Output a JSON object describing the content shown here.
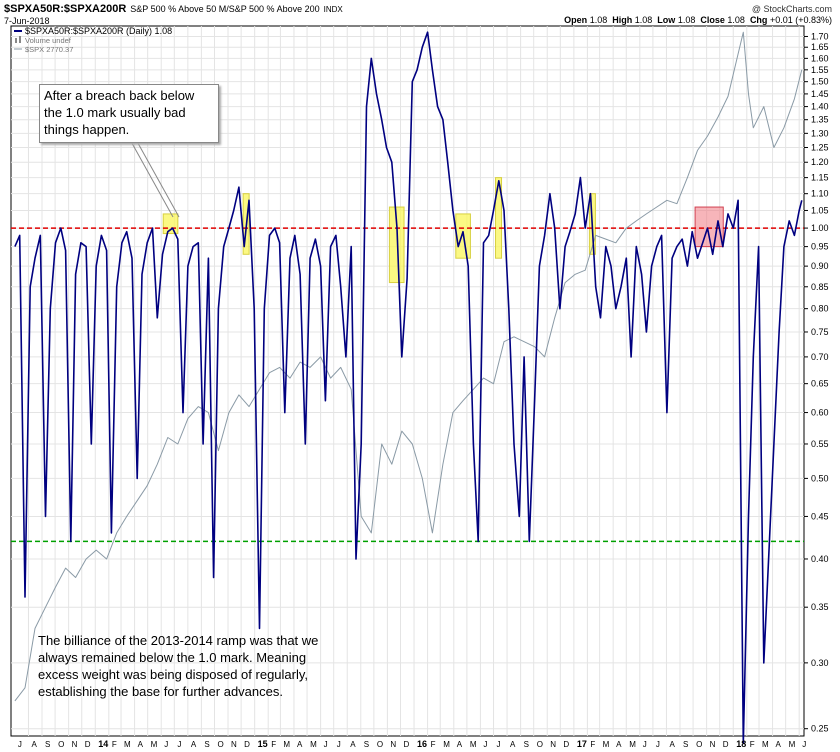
{
  "header": {
    "symbol": "$SPXA50R:$SPXA200R",
    "description": "S&P 500 % Above 50 M/S&P 500 % Above 200",
    "tag": "INDX",
    "date": "7-Jun-2018",
    "credit": "@ StockCharts.com",
    "ohlc": {
      "open_label": "Open",
      "open": "1.08",
      "high_label": "High",
      "high": "1.08",
      "low_label": "Low",
      "low": "1.08",
      "close_label": "Close",
      "close": "1.08",
      "chg_label": "Chg",
      "chg": "+0.01 (+0.83%)"
    }
  },
  "annotations": {
    "top": "After a breach back below the 1.0 mark usually bad things happen.",
    "bottom": "The billiance of the 2013-2014 ramp was that we always remained below the 1.0 mark. Meaning excess weight was being disposed of regularly, establishing the base for further advances."
  },
  "chart_data": {
    "type": "line",
    "y_scale": "log",
    "ylim": [
      0.245,
      1.75
    ],
    "y_ticks": [
      "1.70",
      "1.65",
      "1.60",
      "1.55",
      "1.50",
      "1.45",
      "1.40",
      "1.35",
      "1.30",
      "1.25",
      "1.20",
      "1.15",
      "1.10",
      "1.05",
      "1.00",
      "0.95",
      "0.90",
      "0.85",
      "0.80",
      "0.75",
      "0.70",
      "0.65",
      "0.60",
      "0.55",
      "0.50",
      "0.45",
      "0.40",
      "0.35",
      "0.30",
      "0.25"
    ],
    "x_ticks": [
      "J",
      "A",
      "S",
      "O",
      "N",
      "D",
      "14",
      "F",
      "M",
      "A",
      "M",
      "J",
      "J",
      "A",
      "S",
      "O",
      "N",
      "D",
      "15",
      "F",
      "M",
      "A",
      "M",
      "J",
      "J",
      "A",
      "S",
      "O",
      "N",
      "D",
      "16",
      "F",
      "M",
      "A",
      "M",
      "J",
      "J",
      "A",
      "S",
      "O",
      "N",
      "D",
      "17",
      "F",
      "M",
      "A",
      "M",
      "J",
      "J",
      "A",
      "S",
      "O",
      "N",
      "D",
      "18",
      "F",
      "M",
      "A",
      "M",
      "J"
    ],
    "year_labels": [
      "14",
      "15",
      "16",
      "17",
      "18"
    ],
    "legend": [
      {
        "name": "$SPXA50R:$SPXA200R (Daily) 1.08",
        "color": "#000080"
      },
      {
        "name": "Volume undef",
        "color": "#888888"
      },
      {
        "name": "$SPX 2770.37",
        "color": "#8a9aa6"
      }
    ],
    "reference_lines": [
      {
        "value": 1.0,
        "color": "#e00000",
        "style": "dashed"
      },
      {
        "value": 0.42,
        "color": "#00a000",
        "style": "dashed"
      }
    ],
    "highlights": [
      {
        "from": "Jun 2014",
        "to": "Jul 2014",
        "low": 0.985,
        "high": 1.04,
        "color": "yellow"
      },
      {
        "from": "Dec 2014",
        "to": "Dec 2014",
        "low": 0.93,
        "high": 1.1,
        "color": "yellow"
      },
      {
        "from": "Nov 2015",
        "to": "Dec 2015",
        "low": 0.86,
        "high": 1.06,
        "color": "yellow"
      },
      {
        "from": "Apr 2016",
        "to": "May 2016",
        "low": 0.92,
        "high": 1.04,
        "color": "yellow"
      },
      {
        "from": "Jul 2016",
        "to": "Jul 2016",
        "low": 0.92,
        "high": 1.15,
        "color": "yellow"
      },
      {
        "from": "Feb 2017",
        "to": "Feb 2017",
        "low": 0.93,
        "high": 1.1,
        "color": "yellow"
      },
      {
        "from": "Oct 2017",
        "to": "Dec 2017",
        "low": 0.95,
        "high": 1.06,
        "color": "red"
      }
    ],
    "series": [
      {
        "name": "$SPXA50R:$SPXA200R",
        "color": "#000080",
        "x": [
          "2013-07-01",
          "2013-07-12",
          "2013-07-24",
          "2013-08-05",
          "2013-08-16",
          "2013-08-28",
          "2013-09-09",
          "2013-09-20",
          "2013-10-02",
          "2013-10-14",
          "2013-10-25",
          "2013-11-06",
          "2013-11-17",
          "2013-11-29",
          "2013-12-11",
          "2013-12-23",
          "2014-01-03",
          "2014-01-15",
          "2014-01-27",
          "2014-02-07",
          "2014-02-19",
          "2014-03-03",
          "2014-03-14",
          "2014-03-26",
          "2014-04-07",
          "2014-04-18",
          "2014-04-30",
          "2014-05-12",
          "2014-05-23",
          "2014-06-04",
          "2014-06-16",
          "2014-06-27",
          "2014-07-09",
          "2014-07-21",
          "2014-08-01",
          "2014-08-13",
          "2014-08-25",
          "2014-09-05",
          "2014-09-17",
          "2014-09-29",
          "2014-10-10",
          "2014-10-22",
          "2014-11-03",
          "2014-11-14",
          "2014-11-26",
          "2014-12-08",
          "2014-12-19",
          "2014-12-31",
          "2015-01-12",
          "2015-01-23",
          "2015-02-04",
          "2015-02-16",
          "2015-02-27",
          "2015-03-11",
          "2015-03-23",
          "2015-04-03",
          "2015-04-15",
          "2015-04-27",
          "2015-05-08",
          "2015-05-20",
          "2015-06-01",
          "2015-06-12",
          "2015-06-24",
          "2015-07-06",
          "2015-07-17",
          "2015-07-29",
          "2015-08-10",
          "2015-08-21",
          "2015-09-02",
          "2015-09-14",
          "2015-09-25",
          "2015-10-07",
          "2015-10-19",
          "2015-10-30",
          "2015-11-11",
          "2015-11-23",
          "2015-12-04",
          "2015-12-16",
          "2015-12-28",
          "2016-01-08",
          "2016-01-20",
          "2016-02-01",
          "2016-02-12",
          "2016-02-24",
          "2016-03-07",
          "2016-03-18",
          "2016-03-30",
          "2016-04-11",
          "2016-04-22",
          "2016-05-04",
          "2016-05-16",
          "2016-05-27",
          "2016-06-08",
          "2016-06-20",
          "2016-07-01",
          "2016-07-13",
          "2016-07-25",
          "2016-08-05",
          "2016-08-17",
          "2016-08-29",
          "2016-09-09",
          "2016-09-21",
          "2016-10-03",
          "2016-10-14",
          "2016-10-26",
          "2016-11-07",
          "2016-11-18",
          "2016-11-30",
          "2016-12-12",
          "2016-12-23",
          "2017-01-04",
          "2017-01-16",
          "2017-01-27",
          "2017-02-08",
          "2017-02-20",
          "2017-03-03",
          "2017-03-15",
          "2017-03-27",
          "2017-04-07",
          "2017-04-19",
          "2017-05-01",
          "2017-05-12",
          "2017-05-24",
          "2017-06-05",
          "2017-06-16",
          "2017-06-28",
          "2017-07-10",
          "2017-07-21",
          "2017-08-02",
          "2017-08-14",
          "2017-08-25",
          "2017-09-06",
          "2017-09-18",
          "2017-09-29",
          "2017-10-11",
          "2017-10-23",
          "2017-11-03",
          "2017-11-15",
          "2017-11-27",
          "2017-12-08",
          "2017-12-20",
          "2018-01-01",
          "2018-01-12",
          "2018-01-24",
          "2018-02-05",
          "2018-02-16",
          "2018-02-28",
          "2018-03-12",
          "2018-03-23",
          "2018-04-04",
          "2018-04-16",
          "2018-04-27",
          "2018-05-09",
          "2018-05-21",
          "2018-06-01",
          "2018-06-07"
        ],
        "values": [
          0.95,
          0.98,
          0.36,
          0.85,
          0.92,
          0.98,
          0.45,
          0.8,
          0.96,
          1.0,
          0.94,
          0.42,
          0.88,
          0.96,
          0.95,
          0.55,
          0.9,
          0.98,
          0.94,
          0.43,
          0.85,
          0.96,
          0.99,
          0.92,
          0.5,
          0.88,
          0.96,
          1.0,
          0.78,
          0.93,
          0.99,
          1.0,
          0.97,
          0.6,
          0.9,
          0.95,
          0.96,
          0.55,
          0.92,
          0.38,
          0.8,
          0.95,
          1.0,
          1.05,
          1.12,
          0.95,
          1.08,
          0.8,
          0.33,
          0.8,
          0.98,
          1.0,
          0.96,
          0.6,
          0.92,
          0.98,
          0.88,
          0.55,
          0.92,
          0.97,
          0.9,
          0.62,
          0.95,
          0.98,
          0.85,
          0.7,
          0.95,
          0.4,
          0.55,
          1.4,
          1.6,
          1.45,
          1.35,
          1.25,
          1.2,
          1.0,
          0.7,
          0.87,
          1.5,
          1.55,
          1.65,
          1.72,
          1.55,
          1.4,
          1.35,
          1.2,
          1.05,
          0.95,
          0.99,
          0.9,
          0.55,
          0.42,
          0.96,
          0.98,
          1.05,
          1.14,
          1.05,
          0.8,
          0.55,
          0.45,
          0.7,
          0.42,
          0.62,
          0.9,
          0.98,
          1.1,
          1.0,
          0.8,
          0.95,
          0.99,
          1.04,
          1.15,
          1.0,
          1.1,
          0.85,
          0.78,
          0.95,
          0.9,
          0.8,
          0.85,
          0.92,
          0.7,
          0.95,
          0.88,
          0.75,
          0.9,
          0.95,
          0.98,
          0.6,
          0.92,
          0.95,
          0.97,
          0.9,
          0.99,
          0.92,
          0.96,
          1.0,
          0.93,
          1.02,
          0.95,
          1.04,
          1.0,
          1.08,
          0.24,
          0.45,
          0.7,
          0.95,
          0.3,
          0.4,
          0.55,
          0.75,
          0.95,
          1.02,
          0.98,
          1.05,
          1.08
        ]
      },
      {
        "name": "$SPX",
        "color": "#8a9aa6",
        "x": [
          "2013-07-01",
          "2013-07-24",
          "2013-08-16",
          "2013-09-09",
          "2013-10-02",
          "2013-10-25",
          "2013-11-17",
          "2013-12-11",
          "2014-01-03",
          "2014-01-27",
          "2014-02-19",
          "2014-03-14",
          "2014-04-07",
          "2014-04-30",
          "2014-05-23",
          "2014-06-16",
          "2014-07-09",
          "2014-08-01",
          "2014-08-25",
          "2014-09-17",
          "2014-10-10",
          "2014-11-03",
          "2014-11-26",
          "2014-12-19",
          "2015-01-12",
          "2015-02-04",
          "2015-02-27",
          "2015-03-23",
          "2015-04-15",
          "2015-05-08",
          "2015-06-01",
          "2015-06-24",
          "2015-07-17",
          "2015-08-10",
          "2015-09-02",
          "2015-09-25",
          "2015-10-19",
          "2015-11-11",
          "2015-12-04",
          "2015-12-28",
          "2016-01-20",
          "2016-02-12",
          "2016-03-07",
          "2016-03-30",
          "2016-04-22",
          "2016-05-16",
          "2016-06-08",
          "2016-07-01",
          "2016-07-25",
          "2016-08-17",
          "2016-09-09",
          "2016-10-03",
          "2016-10-26",
          "2016-11-18",
          "2016-12-12",
          "2017-01-04",
          "2017-01-27",
          "2017-02-20",
          "2017-03-15",
          "2017-04-07",
          "2017-05-01",
          "2017-05-24",
          "2017-06-16",
          "2017-07-10",
          "2017-08-02",
          "2017-08-25",
          "2017-09-18",
          "2017-10-11",
          "2017-11-03",
          "2017-11-27",
          "2017-12-20",
          "2018-01-12",
          "2018-01-24",
          "2018-02-05",
          "2018-02-16",
          "2018-03-12",
          "2018-04-04",
          "2018-04-27",
          "2018-05-21",
          "2018-06-07"
        ],
        "values": [
          0.27,
          0.28,
          0.33,
          0.35,
          0.37,
          0.39,
          0.38,
          0.4,
          0.41,
          0.4,
          0.43,
          0.45,
          0.47,
          0.49,
          0.52,
          0.56,
          0.55,
          0.59,
          0.61,
          0.6,
          0.54,
          0.6,
          0.63,
          0.61,
          0.64,
          0.67,
          0.68,
          0.66,
          0.69,
          0.68,
          0.7,
          0.66,
          0.68,
          0.64,
          0.45,
          0.43,
          0.55,
          0.52,
          0.57,
          0.55,
          0.5,
          0.43,
          0.52,
          0.6,
          0.62,
          0.64,
          0.66,
          0.65,
          0.73,
          0.74,
          0.73,
          0.72,
          0.7,
          0.78,
          0.86,
          0.88,
          0.89,
          0.98,
          0.97,
          0.96,
          1.0,
          1.02,
          1.04,
          1.06,
          1.08,
          1.07,
          1.15,
          1.24,
          1.29,
          1.36,
          1.44,
          1.62,
          1.72,
          1.45,
          1.32,
          1.4,
          1.25,
          1.32,
          1.43,
          1.55
        ]
      }
    ]
  }
}
